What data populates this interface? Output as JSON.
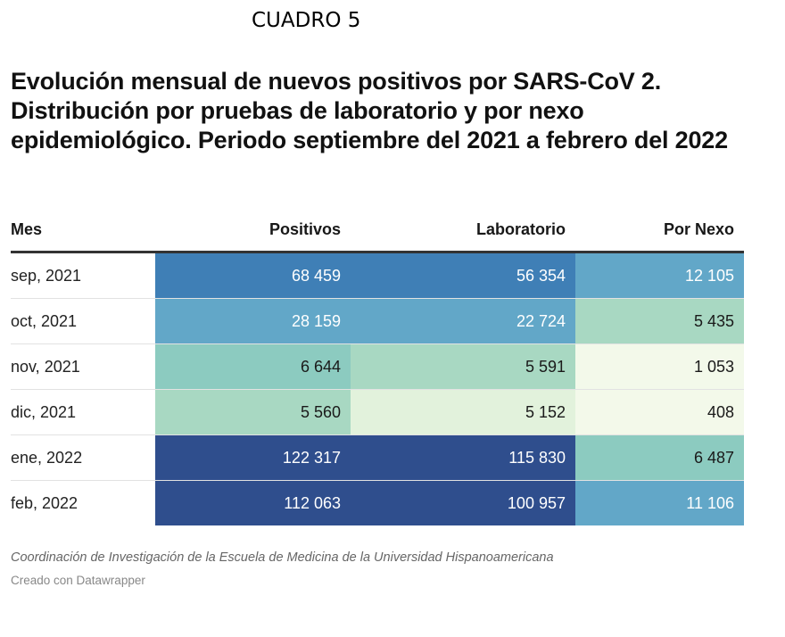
{
  "label_top": "CUADRO 5",
  "title": "Evolución mensual de nuevos positivos por SARS-CoV 2. Distribución por pruebas de laboratorio y por nexo epidemiológico. Periodo septiembre del 2021 a febrero del 2022",
  "source": "Coordinación de Investigación de la Escuela de Medicina de la Universidad Hispanoamericana",
  "credit": "Creado con Datawrapper",
  "colors": {
    "scale": [
      "#f3f9ea",
      "#e2f2dc",
      "#a8d8c2",
      "#8ccbc0",
      "#62a7c8",
      "#3f7fb6",
      "#2f4e8d"
    ]
  },
  "chart_data": {
    "type": "table",
    "columns": [
      "Mes",
      "Positivos",
      "Laboratorio",
      "Por Nexo"
    ],
    "rows": [
      {
        "mes": "sep, 2021",
        "positivos": "68 459",
        "laboratorio": "56 354",
        "nexo": "12 105"
      },
      {
        "mes": "oct, 2021",
        "positivos": "28 159",
        "laboratorio": "22 724",
        "nexo": "5 435"
      },
      {
        "mes": "nov, 2021",
        "positivos": "6 644",
        "laboratorio": "5 591",
        "nexo": "1 053"
      },
      {
        "mes": "dic, 2021",
        "positivos": "5 560",
        "laboratorio": "5 152",
        "nexo": "408"
      },
      {
        "mes": "ene, 2022",
        "positivos": "122 317",
        "laboratorio": "115 830",
        "nexo": "6 487"
      },
      {
        "mes": "feb, 2022",
        "positivos": "112 063",
        "laboratorio": "100 957",
        "nexo": "11 106"
      }
    ],
    "shading": [
      [
        5,
        5,
        4
      ],
      [
        4,
        4,
        2
      ],
      [
        3,
        2,
        0
      ],
      [
        2,
        1,
        0
      ],
      [
        6,
        6,
        3
      ],
      [
        6,
        6,
        4
      ]
    ]
  }
}
